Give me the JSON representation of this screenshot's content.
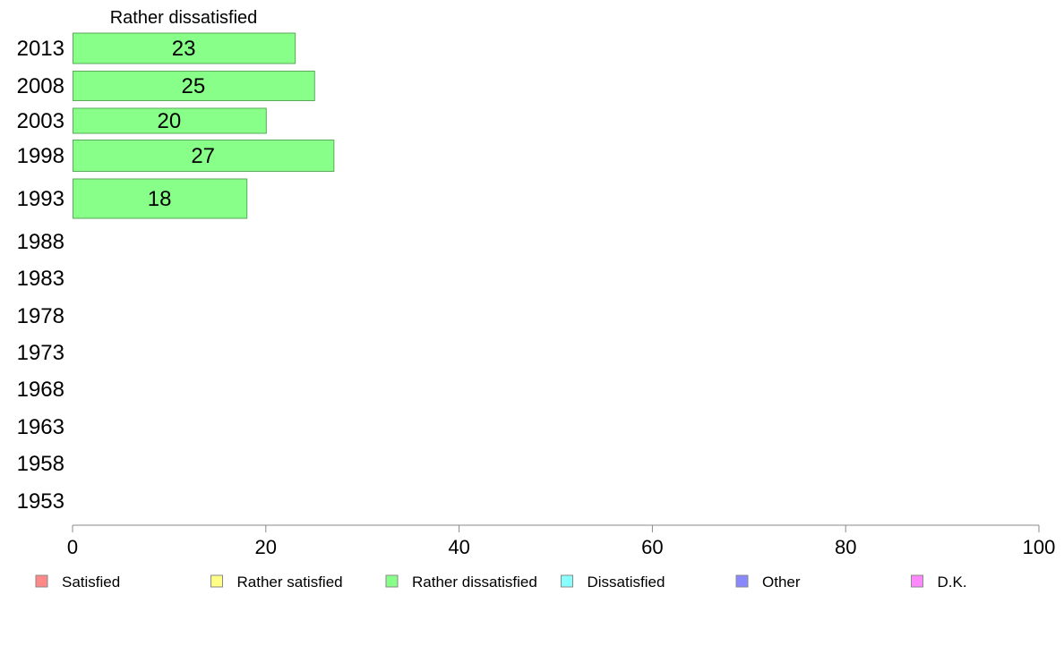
{
  "chart_data": {
    "type": "bar",
    "orientation": "horizontal",
    "title": "Rather dissatisfied",
    "categories": [
      "2013",
      "2008",
      "2003",
      "1998",
      "1993",
      "1988",
      "1983",
      "1978",
      "1973",
      "1968",
      "1963",
      "1958",
      "1953"
    ],
    "series": [
      {
        "name": "Rather dissatisfied",
        "values": [
          23,
          25,
          20,
          27,
          18,
          null,
          null,
          null,
          null,
          null,
          null,
          null,
          null
        ],
        "color": "#88ff88"
      }
    ],
    "xlim": [
      0,
      100
    ],
    "x_ticks": [
      0,
      20,
      40,
      60,
      80,
      100
    ],
    "grid": false,
    "legend_position": "bottom",
    "legend": [
      {
        "label": "Satisfied",
        "color": "#ff8888"
      },
      {
        "label": "Rather satisfied",
        "color": "#ffff88"
      },
      {
        "label": "Rather dissatisfied",
        "color": "#88ff88"
      },
      {
        "label": "Dissatisfied",
        "color": "#88ffff"
      },
      {
        "label": "Other",
        "color": "#8888ff"
      },
      {
        "label": "D.K.",
        "color": "#ff88ff"
      }
    ],
    "bar_edge_color": "#5aaa5a",
    "axis_color": "#888888"
  }
}
